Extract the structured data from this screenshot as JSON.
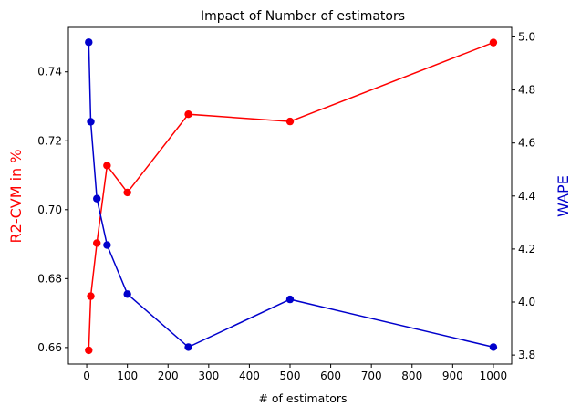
{
  "chart_data": {
    "type": "line",
    "title": "Impact of Number of estimators",
    "xlabel": "# of estimators",
    "ylabel_left": "R2-CVM in %",
    "ylabel_right": "WAPE",
    "xlim": [
      -45,
      1045
    ],
    "ylim_left": [
      0.6552,
      0.7529
    ],
    "ylim_right": [
      3.766,
      5.036
    ],
    "x_ticks": [
      0,
      100,
      200,
      300,
      400,
      500,
      600,
      700,
      800,
      900,
      1000
    ],
    "y_left_ticks": [
      0.66,
      0.68,
      0.7,
      0.72,
      0.74
    ],
    "y_left_tick_labels": [
      "0.66",
      "0.68",
      "0.70",
      "0.72",
      "0.74"
    ],
    "y_right_ticks": [
      3.8,
      4.0,
      4.2,
      4.4,
      4.6,
      4.8,
      5.0
    ],
    "y_right_tick_labels": [
      "3.8",
      "4.0",
      "4.2",
      "4.4",
      "4.6",
      "4.8",
      "5.0"
    ],
    "grid": false,
    "series": [
      {
        "axis": "left",
        "color": "#ff0000",
        "x": [
          5,
          10,
          25,
          50,
          100,
          250,
          500,
          1000
        ],
        "values": [
          0.6592,
          0.6749,
          0.6903,
          0.7128,
          0.705,
          0.7277,
          0.7256,
          0.7485
        ]
      },
      {
        "axis": "right",
        "color": "#0000cc",
        "x": [
          5,
          10,
          25,
          50,
          100,
          250,
          500,
          1000
        ],
        "values": [
          4.98,
          4.68,
          4.39,
          4.215,
          4.03,
          3.83,
          4.01,
          3.83
        ]
      }
    ]
  }
}
